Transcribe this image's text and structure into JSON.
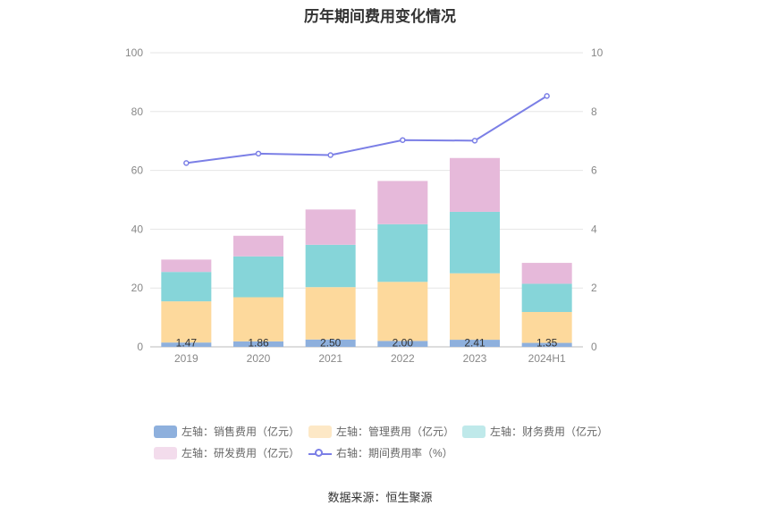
{
  "title": "历年期间费用变化情况",
  "source": "数据来源：恒生聚源",
  "chart_data": {
    "type": "bar",
    "stacked": true,
    "categories": [
      "2019",
      "2020",
      "2021",
      "2022",
      "2023",
      "2024H1"
    ],
    "left_axis": {
      "ylim": [
        0,
        100
      ],
      "ticks": [
        0,
        20,
        40,
        60,
        80,
        100
      ]
    },
    "right_axis": {
      "ylim": [
        0,
        10
      ],
      "ticks": [
        0,
        2,
        4,
        6,
        8,
        10
      ]
    },
    "series": [
      {
        "name": "左轴：销售费用（亿元）",
        "axis": "left",
        "kind": "bar",
        "color": "#8eb0dd",
        "values": [
          1.47,
          1.86,
          2.5,
          2.0,
          2.41,
          1.35
        ],
        "labels": [
          "1.47",
          "1.86",
          "2.50",
          "2.00",
          "2.41",
          "1.35"
        ]
      },
      {
        "name": "左轴：管理费用（亿元）",
        "axis": "left",
        "kind": "bar",
        "color": "#fdd99c",
        "values": [
          14.0,
          15.0,
          17.8,
          20.1,
          22.6,
          10.5
        ]
      },
      {
        "name": "左轴：财务费用（亿元）",
        "axis": "left",
        "kind": "bar",
        "color": "#86d5d9",
        "values": [
          10.0,
          13.9,
          14.4,
          19.6,
          20.9,
          9.6
        ]
      },
      {
        "name": "左轴：研发费用（亿元）",
        "axis": "left",
        "kind": "bar",
        "color": "#e6b9da",
        "values": [
          4.2,
          7.0,
          12.0,
          14.7,
          18.3,
          7.1
        ]
      },
      {
        "name": "右轴：期间费用率（%）",
        "axis": "right",
        "kind": "line",
        "color": "#7b7fe6",
        "values": [
          6.25,
          6.57,
          6.52,
          7.03,
          7.01,
          8.53
        ]
      }
    ],
    "legend_position": "bottom",
    "grid": true
  }
}
